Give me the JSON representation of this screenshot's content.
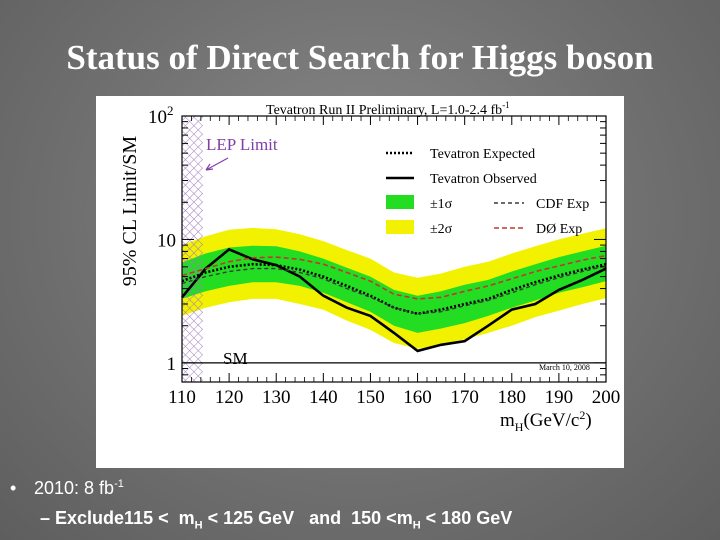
{
  "slide": {
    "title": "Status of Direct Search for Higgs boson",
    "bullet": {
      "prefix": "2010: 8 fb",
      "sup": "-1"
    },
    "subbullet": {
      "dash": "–",
      "part1": "Exclude115 <  m",
      "sub1": "H",
      "part2": " < 125 GeV   and  150 <m",
      "sub2": "H",
      "part3": " < 180 GeV"
    }
  },
  "chart_data": {
    "type": "line",
    "title": "Tevatron Run II Preliminary, L=1.0-2.4 fb",
    "title_sup": "-1",
    "ylabel": "95% CL Limit/SM",
    "xlabel_main": "m",
    "xlabel_sub": "H",
    "xlabel_units": "(GeV/c",
    "xlabel_units_sup": "2",
    "xlabel_end": ")",
    "y_scale": "log",
    "xlim": [
      110,
      200
    ],
    "ylim": [
      0.7,
      100
    ],
    "x_ticks": [
      "110",
      "120",
      "130",
      "140",
      "150",
      "160",
      "170",
      "180",
      "190",
      "200"
    ],
    "y_tick_labels": [
      {
        "value": 100,
        "base": "10",
        "sup": "2"
      },
      {
        "value": 10,
        "base": "10",
        "sup": ""
      },
      {
        "value": 1,
        "base": "1",
        "sup": ""
      }
    ],
    "x": [
      110,
      115,
      120,
      125,
      130,
      135,
      140,
      145,
      150,
      155,
      160,
      165,
      170,
      175,
      180,
      185,
      190,
      195,
      200
    ],
    "series": [
      {
        "name": "Tevatron Expected",
        "style": "dotted",
        "color": "#000000",
        "values": [
          4.6,
          5.4,
          6.0,
          6.3,
          6.2,
          5.7,
          5.0,
          4.2,
          3.5,
          2.8,
          2.5,
          2.7,
          3.0,
          3.3,
          3.9,
          4.5,
          5.1,
          5.7,
          6.3
        ]
      },
      {
        "name": "Tevatron Observed",
        "style": "solid",
        "color": "#000000",
        "values": [
          3.4,
          5.8,
          8.3,
          6.9,
          6.2,
          5.0,
          3.5,
          2.8,
          2.4,
          1.75,
          1.25,
          1.4,
          1.5,
          2.0,
          2.7,
          3.0,
          3.9,
          4.7,
          5.8
        ]
      },
      {
        "name": "CDF Exp",
        "style": "dashed",
        "color": "#3a3a3a",
        "values": [
          4.4,
          5.0,
          5.5,
          5.8,
          5.8,
          5.4,
          4.8,
          4.0,
          3.4,
          2.8,
          2.5,
          2.6,
          2.9,
          3.2,
          3.7,
          4.3,
          4.9,
          5.5,
          6.1
        ]
      },
      {
        "name": "DØ Exp",
        "style": "dashed",
        "color": "#c0392b",
        "values": [
          5.1,
          5.8,
          6.6,
          7.1,
          7.2,
          6.9,
          6.3,
          5.4,
          4.6,
          3.6,
          3.3,
          3.4,
          3.8,
          4.2,
          4.8,
          5.5,
          6.1,
          6.8,
          7.4
        ]
      }
    ],
    "bands": [
      {
        "name": "±1σ",
        "color": "#22dd22",
        "fill_opacity": 1,
        "low": [
          3.3,
          3.8,
          4.2,
          4.5,
          4.5,
          4.2,
          3.7,
          3.1,
          2.6,
          2.0,
          1.75,
          1.9,
          2.1,
          2.4,
          2.8,
          3.2,
          3.7,
          4.1,
          4.6
        ],
        "high": [
          6.5,
          7.7,
          8.6,
          8.9,
          8.8,
          8.0,
          7.0,
          5.9,
          5.0,
          3.9,
          3.5,
          3.8,
          4.3,
          4.7,
          5.5,
          6.3,
          7.2,
          8.0,
          8.9
        ]
      },
      {
        "name": "±2σ",
        "color": "#f2f200",
        "fill_opacity": 1,
        "low": [
          2.4,
          2.8,
          3.1,
          3.3,
          3.3,
          3.0,
          2.7,
          2.2,
          1.85,
          1.45,
          1.3,
          1.4,
          1.55,
          1.75,
          2.0,
          2.35,
          2.65,
          3.0,
          3.35
        ],
        "high": [
          9.0,
          10.6,
          12.0,
          12.4,
          12.1,
          11.0,
          9.7,
          8.2,
          7.0,
          5.4,
          4.9,
          5.3,
          6.0,
          6.6,
          7.7,
          8.8,
          10.0,
          11.1,
          12.3
        ]
      }
    ],
    "annotations": {
      "lep_limit": "LEP Limit",
      "sm": "SM",
      "date": "March 10, 2008",
      "lep_excluded_upto": 114.4
    },
    "legend": {
      "placement": "top-right",
      "expected": "Tevatron Expected",
      "observed": "Tevatron Observed",
      "one_sigma": "±1σ",
      "two_sigma": "±2σ",
      "cdf": "CDF Exp",
      "d0": "DØ Exp"
    },
    "sm_line": 1
  }
}
